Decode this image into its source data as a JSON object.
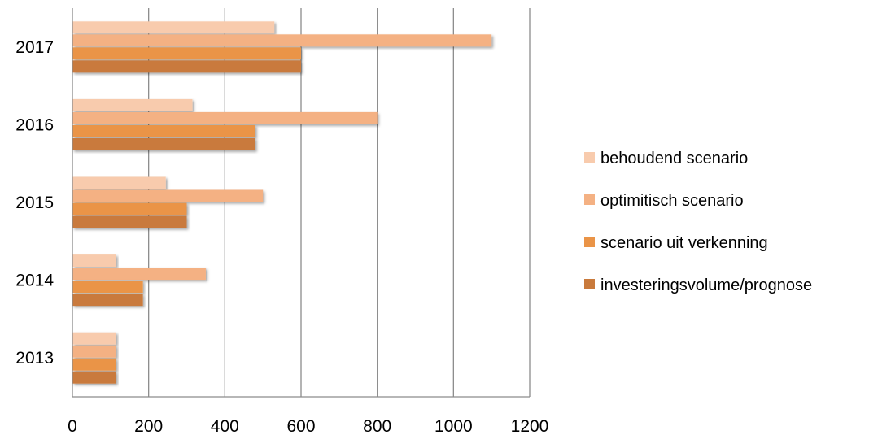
{
  "chart_data": {
    "type": "bar",
    "orientation": "horizontal",
    "categories": [
      "2013",
      "2014",
      "2015",
      "2016",
      "2017"
    ],
    "xlim": [
      0,
      1200
    ],
    "xticks": [
      "0",
      "200",
      "400",
      "600",
      "800",
      "1000",
      "1200"
    ],
    "grid": "vertical",
    "legend_position": "right",
    "series": [
      {
        "name": "behoudend scenario",
        "color": "#F8CBAD",
        "values": [
          115,
          115,
          245,
          315,
          530
        ]
      },
      {
        "name": "optimitisch scenario",
        "color": "#F4B183",
        "values": [
          115,
          350,
          500,
          800,
          1100
        ]
      },
      {
        "name": "scenario uit verkenning",
        "color": "#EA9447",
        "values": [
          115,
          185,
          300,
          480,
          600
        ]
      },
      {
        "name": "investeringsvolume/prognose",
        "color": "#C97A3C",
        "values": [
          115,
          185,
          300,
          480,
          600
        ]
      }
    ]
  }
}
